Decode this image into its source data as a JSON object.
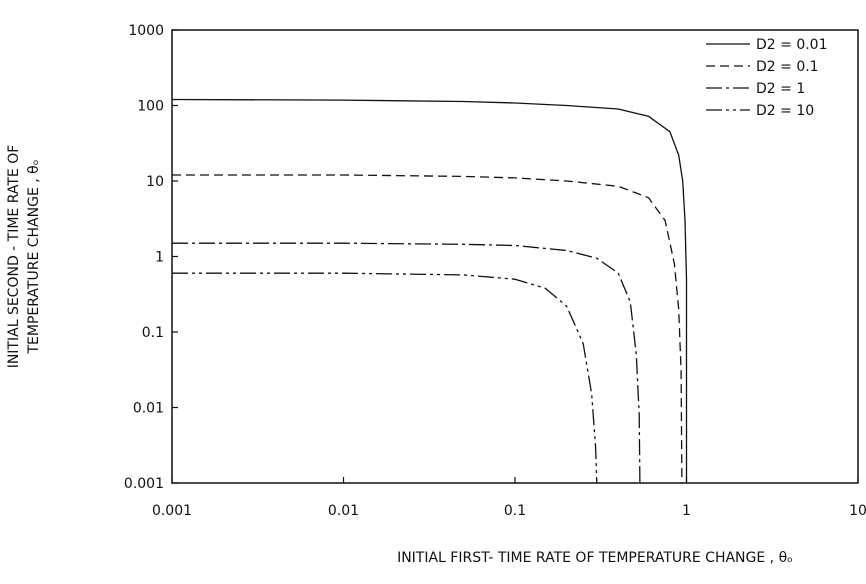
{
  "chart_data": {
    "type": "line",
    "x_scale": "log",
    "y_scale": "log",
    "xlim": [
      0.001,
      10
    ],
    "ylim": [
      0.001,
      1000
    ],
    "xticks": [
      "0.001",
      "0.01",
      "0.1",
      "1",
      "10"
    ],
    "yticks": [
      "0.001",
      "0.01",
      "0.1",
      "1",
      "10",
      "100",
      "1000"
    ],
    "xlabel": "INITIAL FIRST- TIME RATE OF TEMPERATURE CHANGE , θₒ",
    "ylabel_line1": "INITIAL SECOND - TIME RATE OF",
    "ylabel_line2": "TEMPERATURE CHANGE , θₒ",
    "grid": false,
    "legend_position": "top-right",
    "series": [
      {
        "name": "D2 = 0.01",
        "dash": "solid",
        "x": [
          0.001,
          0.01,
          0.05,
          0.1,
          0.2,
          0.4,
          0.6,
          0.8,
          0.9,
          0.95,
          0.98,
          1.0,
          1.0
        ],
        "y": [
          120,
          118,
          113,
          108,
          100,
          90,
          72,
          45,
          22,
          10,
          3,
          0.5,
          0.001
        ]
      },
      {
        "name": "D2 = 0.1",
        "dash": "dashed",
        "x": [
          0.001,
          0.01,
          0.05,
          0.1,
          0.2,
          0.4,
          0.6,
          0.75,
          0.85,
          0.9,
          0.93,
          0.94
        ],
        "y": [
          12,
          12,
          11.5,
          11,
          10,
          8.5,
          6,
          3,
          0.8,
          0.2,
          0.03,
          0.001
        ]
      },
      {
        "name": "D2 = 1",
        "dash": "dash-dot",
        "x": [
          0.001,
          0.01,
          0.05,
          0.1,
          0.2,
          0.3,
          0.4,
          0.47,
          0.51,
          0.53,
          0.535
        ],
        "y": [
          1.5,
          1.5,
          1.45,
          1.4,
          1.2,
          0.95,
          0.6,
          0.25,
          0.05,
          0.008,
          0.001
        ]
      },
      {
        "name": "D2 = 10",
        "dash": "dash-dot-dot",
        "x": [
          0.001,
          0.01,
          0.05,
          0.1,
          0.15,
          0.2,
          0.25,
          0.28,
          0.295,
          0.3
        ],
        "y": [
          0.6,
          0.6,
          0.57,
          0.5,
          0.38,
          0.22,
          0.07,
          0.015,
          0.003,
          0.001
        ]
      }
    ]
  }
}
